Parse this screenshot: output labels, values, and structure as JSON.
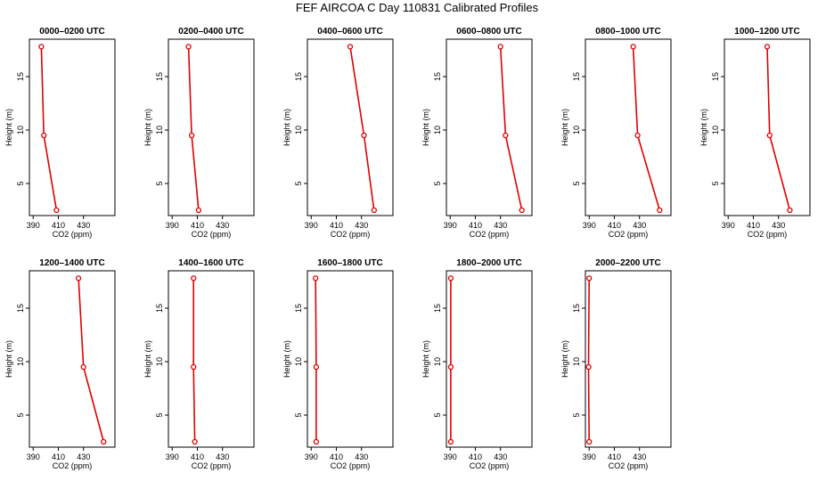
{
  "title": "FEF AIRCOA C  Day 110831  Calibrated Profiles",
  "style": {
    "line_color": "#e00000",
    "point_color": "#e00000",
    "axis_color": "#000000"
  },
  "axes": {
    "xlabel": "CO2 (ppm)",
    "ylabel": "Height (m)",
    "xlim": [
      387,
      455
    ],
    "ylim": [
      2,
      18.5
    ],
    "xticks": [
      390,
      410,
      430
    ],
    "yticks": [
      5,
      10,
      15
    ]
  },
  "chart_data": [
    {
      "type": "line",
      "title": "0000–0200 UTC",
      "x": [
        396.5,
        398.5,
        408.5
      ],
      "y": [
        17.8,
        9.5,
        2.5
      ]
    },
    {
      "type": "line",
      "title": "0200–0400 UTC",
      "x": [
        403.0,
        405.5,
        411.0
      ],
      "y": [
        17.8,
        9.5,
        2.5
      ]
    },
    {
      "type": "line",
      "title": "0400–0600 UTC",
      "x": [
        421.0,
        432.0,
        440.0
      ],
      "y": [
        17.8,
        9.5,
        2.5
      ]
    },
    {
      "type": "line",
      "title": "0600–0800 UTC",
      "x": [
        430.0,
        434.0,
        447.0
      ],
      "y": [
        17.8,
        9.5,
        2.5
      ]
    },
    {
      "type": "line",
      "title": "0800–1000 UTC",
      "x": [
        425.0,
        428.5,
        446.0
      ],
      "y": [
        17.8,
        9.5,
        2.5
      ]
    },
    {
      "type": "line",
      "title": "1000–1200 UTC",
      "x": [
        421.0,
        423.0,
        439.0
      ],
      "y": [
        17.8,
        9.5,
        2.5
      ]
    },
    {
      "type": "line",
      "title": "1200–1400 UTC",
      "x": [
        426.0,
        430.0,
        446.0
      ],
      "y": [
        17.8,
        9.5,
        2.5
      ]
    },
    {
      "type": "line",
      "title": "1400–1600 UTC",
      "x": [
        407.0,
        407.0,
        408.0
      ],
      "y": [
        17.8,
        9.5,
        2.5
      ]
    },
    {
      "type": "line",
      "title": "1600–1800 UTC",
      "x": [
        393.5,
        394.0,
        394.0
      ],
      "y": [
        17.8,
        9.5,
        2.5
      ]
    },
    {
      "type": "line",
      "title": "1800–2000 UTC",
      "x": [
        390.5,
        390.5,
        390.5
      ],
      "y": [
        17.8,
        9.5,
        2.5
      ]
    },
    {
      "type": "line",
      "title": "2000–2200 UTC",
      "x": [
        390.0,
        389.5,
        390.0
      ],
      "y": [
        17.8,
        9.5,
        2.5
      ]
    }
  ]
}
